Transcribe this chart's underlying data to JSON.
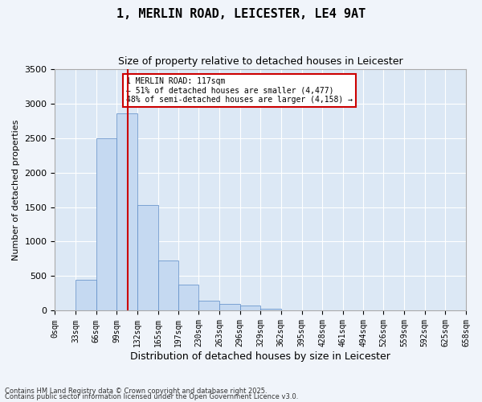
{
  "title1": "1, MERLIN ROAD, LEICESTER, LE4 9AT",
  "title2": "Size of property relative to detached houses in Leicester",
  "xlabel": "Distribution of detached houses by size in Leicester",
  "ylabel": "Number of detached properties",
  "bar_color": "#c5d9f1",
  "bar_edge_color": "#5a8ac6",
  "bar_heights": [
    0,
    450,
    2500,
    2850,
    1525,
    730,
    380,
    150,
    100,
    80,
    30,
    10,
    5,
    2,
    1,
    0,
    0,
    0,
    0,
    0
  ],
  "bin_labels": [
    "0sqm",
    "33sqm",
    "66sqm",
    "99sqm",
    "132sqm",
    "165sqm",
    "197sqm",
    "230sqm",
    "263sqm",
    "296sqm",
    "329sqm",
    "362sqm",
    "395sqm",
    "428sqm",
    "461sqm",
    "494sqm",
    "526sqm",
    "559sqm",
    "592sqm",
    "625sqm",
    "658sqm"
  ],
  "bin_edges": [
    0,
    33,
    66,
    99,
    132,
    165,
    197,
    230,
    263,
    296,
    329,
    362,
    395,
    428,
    461,
    494,
    526,
    559,
    592,
    625,
    658
  ],
  "ylim": [
    0,
    3500
  ],
  "yticks": [
    0,
    500,
    1000,
    1500,
    2000,
    2500,
    3000,
    3500
  ],
  "property_line_x": 117,
  "annotation_text": "1 MERLIN ROAD: 117sqm\n← 51% of detached houses are smaller (4,477)\n48% of semi-detached houses are larger (4,158) →",
  "annotation_box_color": "#ffffff",
  "annotation_box_edge": "#cc0000",
  "red_line_color": "#cc0000",
  "bg_color": "#dce8f5",
  "grid_color": "#ffffff",
  "footer1": "Contains HM Land Registry data © Crown copyright and database right 2025.",
  "footer2": "Contains public sector information licensed under the Open Government Licence v3.0."
}
